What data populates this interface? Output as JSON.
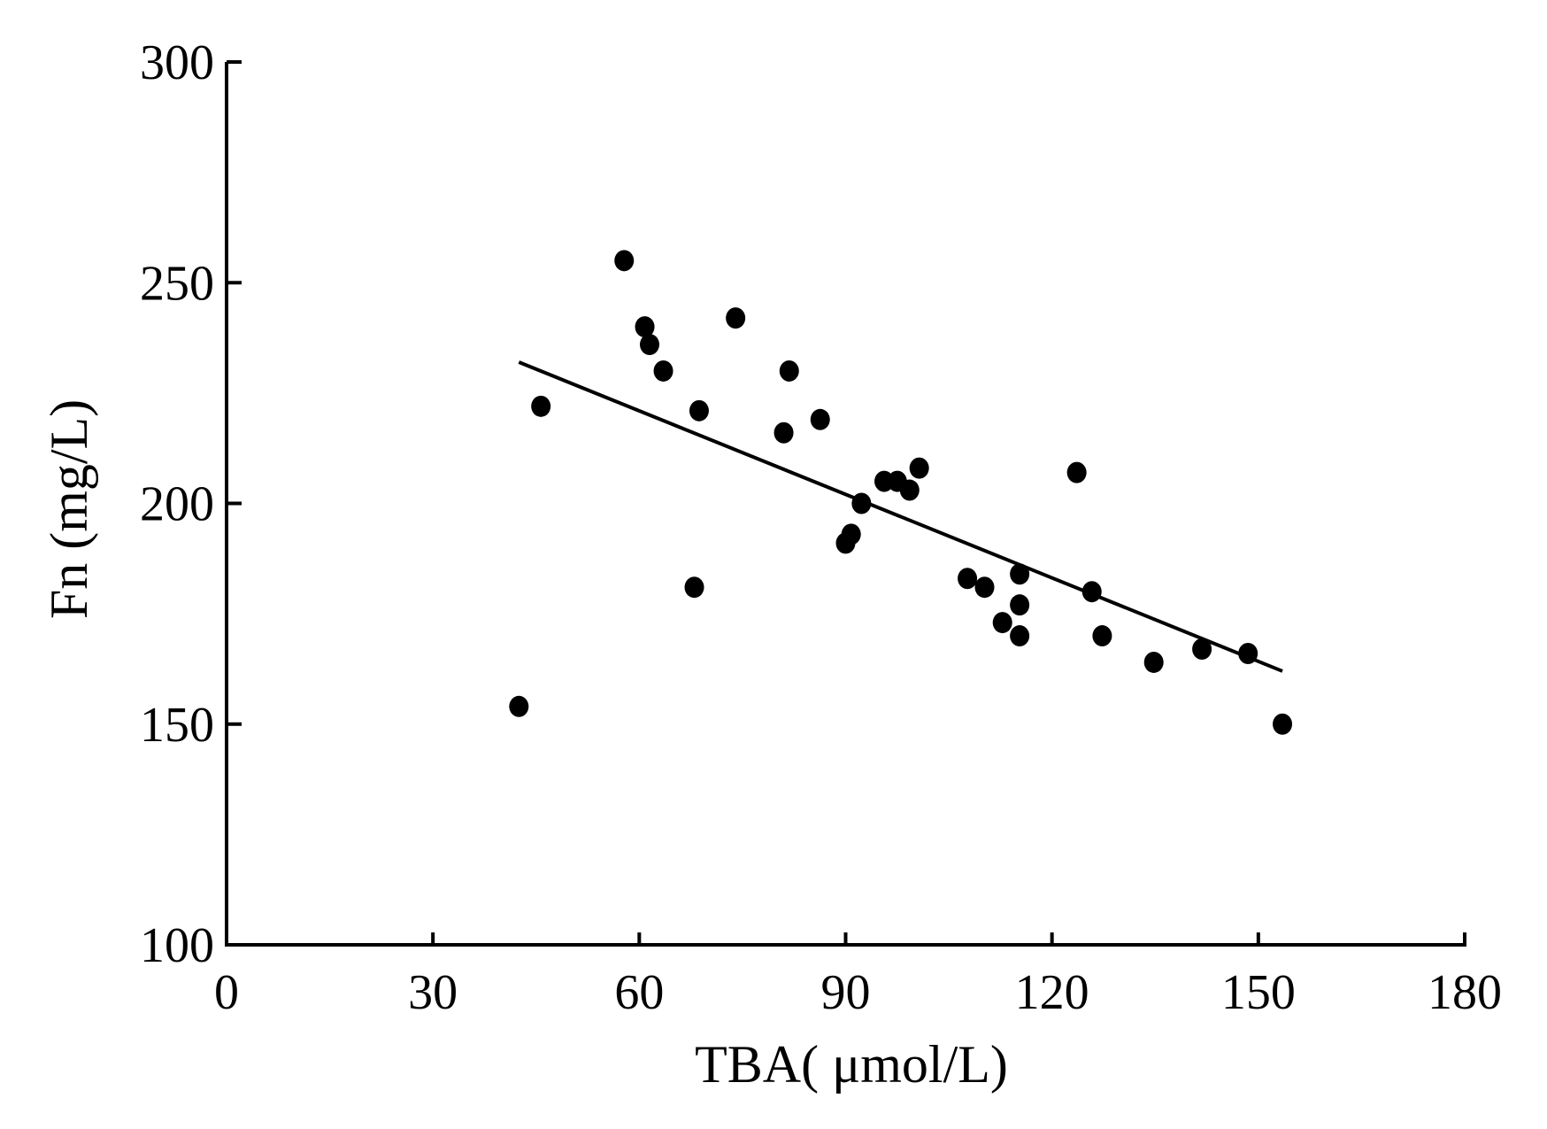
{
  "chart_data": {
    "type": "scatter",
    "title": "",
    "xlabel": "TBA( μmol/L)",
    "ylabel": "Fn (mg/L)",
    "xlim": [
      0,
      180
    ],
    "ylim": [
      100,
      300
    ],
    "xticks": [
      "0",
      "30",
      "60",
      "90",
      "120",
      "150",
      "180"
    ],
    "yticks": [
      "100",
      "150",
      "200",
      "250",
      "300"
    ],
    "grid": false,
    "legend": "none",
    "colors": {
      "points": "#000000",
      "line": "#000000",
      "axes": "#000000"
    },
    "points": [
      {
        "x": 42.5,
        "y": 154
      },
      {
        "x": 45.7,
        "y": 222
      },
      {
        "x": 57.8,
        "y": 255
      },
      {
        "x": 60.8,
        "y": 240
      },
      {
        "x": 61.5,
        "y": 236
      },
      {
        "x": 63.5,
        "y": 230
      },
      {
        "x": 68.0,
        "y": 181
      },
      {
        "x": 68.7,
        "y": 221
      },
      {
        "x": 74.0,
        "y": 242
      },
      {
        "x": 81.0,
        "y": 216
      },
      {
        "x": 81.8,
        "y": 230
      },
      {
        "x": 86.3,
        "y": 219
      },
      {
        "x": 90.0,
        "y": 191
      },
      {
        "x": 90.8,
        "y": 193
      },
      {
        "x": 92.3,
        "y": 200
      },
      {
        "x": 95.6,
        "y": 205
      },
      {
        "x": 97.5,
        "y": 205
      },
      {
        "x": 99.3,
        "y": 203
      },
      {
        "x": 100.7,
        "y": 208
      },
      {
        "x": 107.7,
        "y": 183
      },
      {
        "x": 110.2,
        "y": 181
      },
      {
        "x": 112.8,
        "y": 173
      },
      {
        "x": 115.3,
        "y": 184
      },
      {
        "x": 115.3,
        "y": 177
      },
      {
        "x": 115.3,
        "y": 170
      },
      {
        "x": 123.6,
        "y": 207
      },
      {
        "x": 125.8,
        "y": 180
      },
      {
        "x": 127.3,
        "y": 170
      },
      {
        "x": 134.8,
        "y": 164
      },
      {
        "x": 141.8,
        "y": 167
      },
      {
        "x": 148.5,
        "y": 166
      },
      {
        "x": 153.5,
        "y": 150
      }
    ],
    "trendline": {
      "x": [
        42.5,
        153.5
      ],
      "y": [
        232,
        162
      ]
    }
  }
}
